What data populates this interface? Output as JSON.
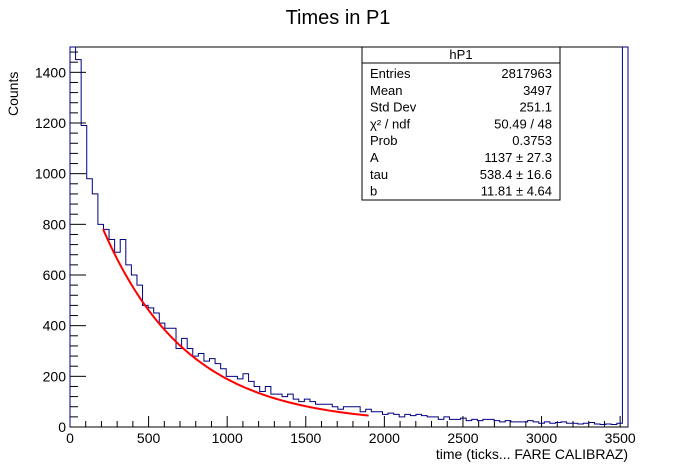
{
  "chart_data": {
    "type": "line",
    "title": "Times in P1",
    "xlabel": "time (ticks... FARE CALIBRAZ)",
    "ylabel": "Counts",
    "xlim": [
      0,
      3550
    ],
    "ylim": [
      0,
      1500
    ],
    "xticks": [
      0,
      500,
      1000,
      1500,
      2000,
      2500,
      3000,
      3500
    ],
    "xtick_labels": [
      "0",
      "500",
      "1000",
      "1500",
      "2000",
      "2500",
      "3000",
      "3500"
    ],
    "yticks": [
      0,
      200,
      400,
      600,
      800,
      1000,
      1200,
      1400
    ],
    "ytick_labels": [
      "0",
      "200",
      "400",
      "600",
      "800",
      "1000",
      "1200",
      "1400"
    ],
    "grid": false,
    "histogram": {
      "name": "hP1",
      "color": "#000080",
      "bin_width": 35.5,
      "values": [
        1500,
        1450,
        1190,
        980,
        920,
        800,
        780,
        740,
        690,
        740,
        640,
        600,
        560,
        480,
        470,
        450,
        410,
        390,
        390,
        310,
        350,
        310,
        280,
        290,
        260,
        270,
        250,
        230,
        200,
        200,
        190,
        210,
        180,
        160,
        140,
        160,
        130,
        130,
        120,
        130,
        110,
        100,
        110,
        100,
        90,
        90,
        90,
        80,
        70,
        80,
        80,
        80,
        60,
        70,
        60,
        60,
        50,
        55,
        50,
        40,
        50,
        45,
        50,
        45,
        40,
        40,
        30,
        40,
        30,
        30,
        35,
        25,
        30,
        25,
        30,
        30,
        25,
        20,
        25,
        20,
        20,
        20,
        25,
        20,
        15,
        20,
        15,
        18,
        20,
        15,
        15,
        12,
        15,
        18,
        12,
        10,
        12,
        10,
        15,
        1500
      ]
    },
    "fit": {
      "name": "fit",
      "color": "#ff0000",
      "x_range": [
        210,
        1900
      ],
      "A": 1137,
      "tau": 538.4,
      "b": 11.81
    },
    "stats": {
      "title": "hP1",
      "rows": [
        {
          "label": "Entries",
          "value": "2817963"
        },
        {
          "label": "Mean",
          "value": "3497"
        },
        {
          "label": "Std Dev",
          "value": "251.1"
        },
        {
          "label": "χ² / ndf",
          "value": "50.49 / 48"
        },
        {
          "label": "Prob",
          "value": "0.3753"
        },
        {
          "label": "A",
          "value": "1137 ± 27.3"
        },
        {
          "label": "tau",
          "value": "538.4 ± 16.6"
        },
        {
          "label": "b",
          "value": "11.81 ± 4.64"
        }
      ]
    }
  }
}
